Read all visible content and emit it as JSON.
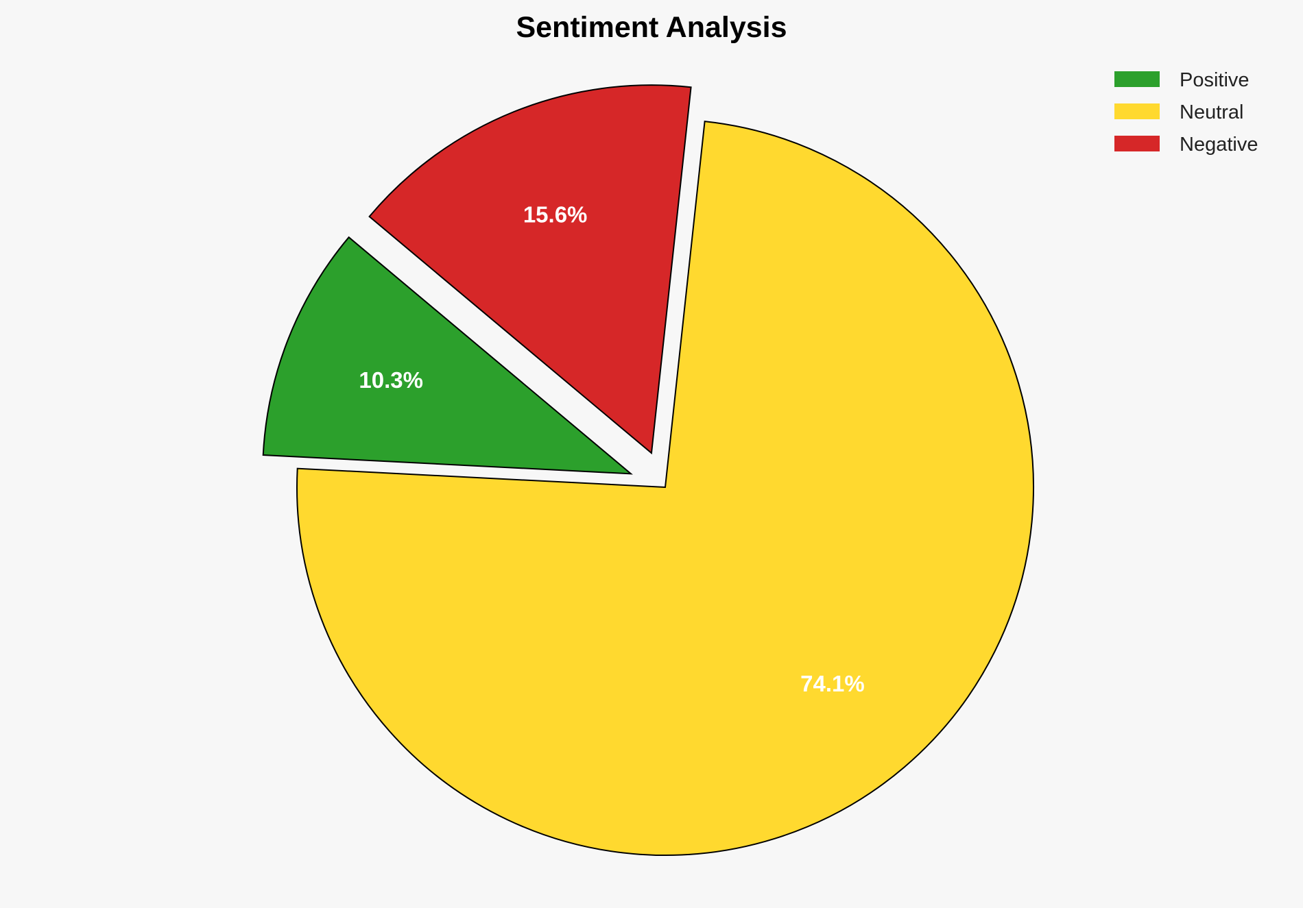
{
  "chart_data": {
    "type": "pie",
    "title": "Sentiment Analysis",
    "categories": [
      "Positive",
      "Neutral",
      "Negative"
    ],
    "values": [
      10.3,
      74.1,
      15.6
    ],
    "labels": [
      "10.3%",
      "74.1%",
      "15.6%"
    ],
    "colors": [
      "#2ca02c",
      "#ffd92f",
      "#d62728"
    ],
    "explode": [
      0.1,
      0,
      0.1
    ],
    "start_angle_deg": 140,
    "direction": "counterclockwise",
    "legend_position": "top-right",
    "edge_color": "#000000",
    "background": "#f7f7f7"
  }
}
